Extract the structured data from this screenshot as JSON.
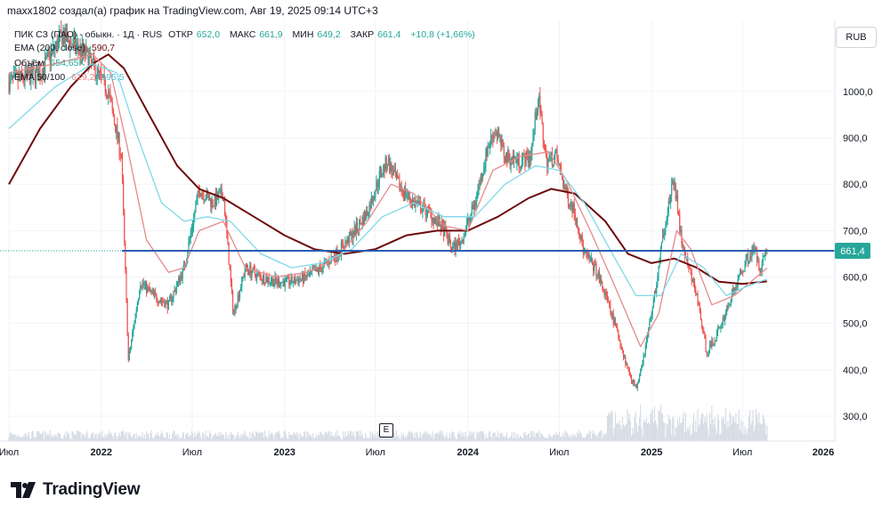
{
  "header": {
    "credit": "maxx1802 создал(а) график на TradingView.com, Авг 19, 2025 09:14 UTC+3"
  },
  "legend": {
    "symbol": "ПИК СЗ (ПАО) - обыкн. · 1Д · RUS",
    "open_label": "ОТКР",
    "open": "652,0",
    "high_label": "МАКС",
    "high": "661,9",
    "low_label": "МИН",
    "low": "649,2",
    "close_label": "ЗАКР",
    "close": "661,4",
    "change": "+10,8 (+1,66%)",
    "ema200_label": "EMA (200, close)",
    "ema200_value": "590,7",
    "volume_label": "Объём",
    "volume_value": "654,65K",
    "ema_50_100_label": "EMA 50/100",
    "ema50_value": "619,2",
    "ema100_value": "595,5"
  },
  "currency_button": "RUB",
  "event_marker": "E",
  "brand": {
    "name": "TradingView"
  },
  "colors": {
    "up": "#26a69a",
    "down": "#ef5350",
    "ema200": "#6d0b0b",
    "ema50": "#e58a8a",
    "ema100": "#7fd9e8",
    "level_line": "#2a5db0",
    "price_badge": "#26a69a",
    "volume": "#d7dde5"
  },
  "chart_data": {
    "type": "line",
    "title": "ПИК СЗ (ПАО) - обыкн. · 1Д · RUS",
    "y_axis": {
      "ticks": [
        "300,0",
        "400,0",
        "500,0",
        "600,0",
        "700,0",
        "800,0",
        "900,0",
        "1000,0"
      ],
      "range": [
        250,
        1080
      ]
    },
    "x_axis": {
      "ticks": [
        "Июл",
        "2022",
        "Июл",
        "2023",
        "Июл",
        "2024",
        "Июл",
        "2025",
        "Июл",
        "2026"
      ]
    },
    "last_price": "661,4",
    "horizontal_level": 661.4,
    "series": [
      {
        "name": "ПИК СЗ (ПАО) - обыкн.",
        "points": [
          [
            "2021-07-01",
            1020
          ],
          [
            "2021-09-01",
            1040
          ],
          [
            "2021-10-15",
            1120
          ],
          [
            "2021-12-01",
            1080
          ],
          [
            "2022-01-15",
            1000
          ],
          [
            "2022-02-10",
            860
          ],
          [
            "2022-02-24",
            420
          ],
          [
            "2022-03-20",
            590
          ],
          [
            "2022-04-15",
            560
          ],
          [
            "2022-05-15",
            540
          ],
          [
            "2022-06-15",
            620
          ],
          [
            "2022-07-15",
            790
          ],
          [
            "2022-08-10",
            760
          ],
          [
            "2022-09-01",
            780
          ],
          [
            "2022-09-21",
            520
          ],
          [
            "2022-10-15",
            620
          ],
          [
            "2022-11-15",
            600
          ],
          [
            "2022-12-15",
            590
          ],
          [
            "2023-01-15",
            590
          ],
          [
            "2023-02-15",
            600
          ],
          [
            "2023-03-15",
            620
          ],
          [
            "2023-04-15",
            650
          ],
          [
            "2023-05-15",
            690
          ],
          [
            "2023-06-15",
            740
          ],
          [
            "2023-07-10",
            820
          ],
          [
            "2023-07-25",
            850
          ],
          [
            "2023-08-15",
            800
          ],
          [
            "2023-09-15",
            760
          ],
          [
            "2023-10-15",
            740
          ],
          [
            "2023-11-15",
            700
          ],
          [
            "2023-12-01",
            660
          ],
          [
            "2023-12-20",
            680
          ],
          [
            "2024-01-15",
            760
          ],
          [
            "2024-02-10",
            880
          ],
          [
            "2024-02-25",
            920
          ],
          [
            "2024-03-15",
            860
          ],
          [
            "2024-04-15",
            850
          ],
          [
            "2024-05-05",
            860
          ],
          [
            "2024-05-20",
            990
          ],
          [
            "2024-06-05",
            850
          ],
          [
            "2024-06-25",
            860
          ],
          [
            "2024-07-15",
            780
          ],
          [
            "2024-08-01",
            740
          ],
          [
            "2024-08-20",
            650
          ],
          [
            "2024-09-10",
            620
          ],
          [
            "2024-10-01",
            560
          ],
          [
            "2024-10-25",
            480
          ],
          [
            "2024-11-15",
            400
          ],
          [
            "2024-12-01",
            360
          ],
          [
            "2024-12-20",
            450
          ],
          [
            "2025-01-10",
            580
          ],
          [
            "2025-01-25",
            700
          ],
          [
            "2025-02-05",
            760
          ],
          [
            "2025-02-15",
            810
          ],
          [
            "2025-03-01",
            680
          ],
          [
            "2025-03-15",
            620
          ],
          [
            "2025-04-01",
            560
          ],
          [
            "2025-04-20",
            440
          ],
          [
            "2025-05-05",
            460
          ],
          [
            "2025-05-20",
            500
          ],
          [
            "2025-06-10",
            560
          ],
          [
            "2025-06-25",
            600
          ],
          [
            "2025-07-10",
            640
          ],
          [
            "2025-07-25",
            660
          ],
          [
            "2025-08-05",
            620
          ],
          [
            "2025-08-19",
            661.4
          ]
        ]
      },
      {
        "name": "EMA (200, close)",
        "points": [
          [
            "2021-07-01",
            800
          ],
          [
            "2021-09-01",
            920
          ],
          [
            "2021-11-01",
            1010
          ],
          [
            "2021-12-15",
            1060
          ],
          [
            "2022-01-15",
            1080
          ],
          [
            "2022-02-15",
            1050
          ],
          [
            "2022-04-01",
            960
          ],
          [
            "2022-06-01",
            840
          ],
          [
            "2022-07-15",
            790
          ],
          [
            "2022-09-01",
            770
          ],
          [
            "2022-11-01",
            730
          ],
          [
            "2023-01-01",
            690
          ],
          [
            "2023-03-01",
            660
          ],
          [
            "2023-05-01",
            650
          ],
          [
            "2023-07-01",
            660
          ],
          [
            "2023-09-01",
            690
          ],
          [
            "2023-11-01",
            700
          ],
          [
            "2024-01-01",
            700
          ],
          [
            "2024-03-01",
            730
          ],
          [
            "2024-05-01",
            770
          ],
          [
            "2024-06-15",
            790
          ],
          [
            "2024-08-01",
            780
          ],
          [
            "2024-10-01",
            720
          ],
          [
            "2024-11-15",
            650
          ],
          [
            "2025-01-01",
            630
          ],
          [
            "2025-02-15",
            640
          ],
          [
            "2025-04-01",
            620
          ],
          [
            "2025-05-15",
            590
          ],
          [
            "2025-07-01",
            585
          ],
          [
            "2025-08-19",
            590.7
          ]
        ]
      },
      {
        "name": "EMA 50",
        "points": [
          [
            "2021-07-01",
            1040
          ],
          [
            "2021-10-01",
            1060
          ],
          [
            "2021-12-15",
            1080
          ],
          [
            "2022-01-20",
            1040
          ],
          [
            "2022-02-20",
            890
          ],
          [
            "2022-04-01",
            680
          ],
          [
            "2022-05-15",
            610
          ],
          [
            "2022-06-15",
            620
          ],
          [
            "2022-07-15",
            700
          ],
          [
            "2022-09-01",
            720
          ],
          [
            "2022-10-15",
            620
          ],
          [
            "2022-12-15",
            600
          ],
          [
            "2023-02-15",
            610
          ],
          [
            "2023-04-15",
            640
          ],
          [
            "2023-06-15",
            720
          ],
          [
            "2023-08-01",
            800
          ],
          [
            "2023-09-15",
            780
          ],
          [
            "2023-11-15",
            710
          ],
          [
            "2024-01-01",
            700
          ],
          [
            "2024-02-20",
            830
          ],
          [
            "2024-04-15",
            860
          ],
          [
            "2024-06-10",
            870
          ],
          [
            "2024-07-15",
            810
          ],
          [
            "2024-09-01",
            700
          ],
          [
            "2024-10-20",
            580
          ],
          [
            "2024-12-10",
            450
          ],
          [
            "2025-01-15",
            520
          ],
          [
            "2025-02-20",
            700
          ],
          [
            "2025-03-20",
            660
          ],
          [
            "2025-05-01",
            540
          ],
          [
            "2025-06-15",
            560
          ],
          [
            "2025-08-19",
            619.2
          ]
        ]
      },
      {
        "name": "EMA 100",
        "points": [
          [
            "2021-07-01",
            920
          ],
          [
            "2021-10-01",
            1010
          ],
          [
            "2021-12-15",
            1060
          ],
          [
            "2022-02-01",
            1040
          ],
          [
            "2022-03-15",
            900
          ],
          [
            "2022-05-01",
            760
          ],
          [
            "2022-06-15",
            720
          ],
          [
            "2022-08-01",
            730
          ],
          [
            "2022-09-15",
            720
          ],
          [
            "2022-11-15",
            650
          ],
          [
            "2023-01-15",
            620
          ],
          [
            "2023-03-15",
            630
          ],
          [
            "2023-05-15",
            660
          ],
          [
            "2023-07-15",
            730
          ],
          [
            "2023-09-15",
            760
          ],
          [
            "2023-11-15",
            730
          ],
          [
            "2024-01-15",
            730
          ],
          [
            "2024-03-15",
            800
          ],
          [
            "2024-05-15",
            840
          ],
          [
            "2024-07-01",
            830
          ],
          [
            "2024-08-20",
            760
          ],
          [
            "2024-10-15",
            650
          ],
          [
            "2024-12-01",
            560
          ],
          [
            "2025-01-20",
            560
          ],
          [
            "2025-03-01",
            650
          ],
          [
            "2025-04-15",
            620
          ],
          [
            "2025-05-30",
            560
          ],
          [
            "2025-07-10",
            580
          ],
          [
            "2025-08-19",
            595.5
          ]
        ]
      }
    ],
    "volume_series_name": "Объём",
    "volume_last": "654,65K"
  }
}
